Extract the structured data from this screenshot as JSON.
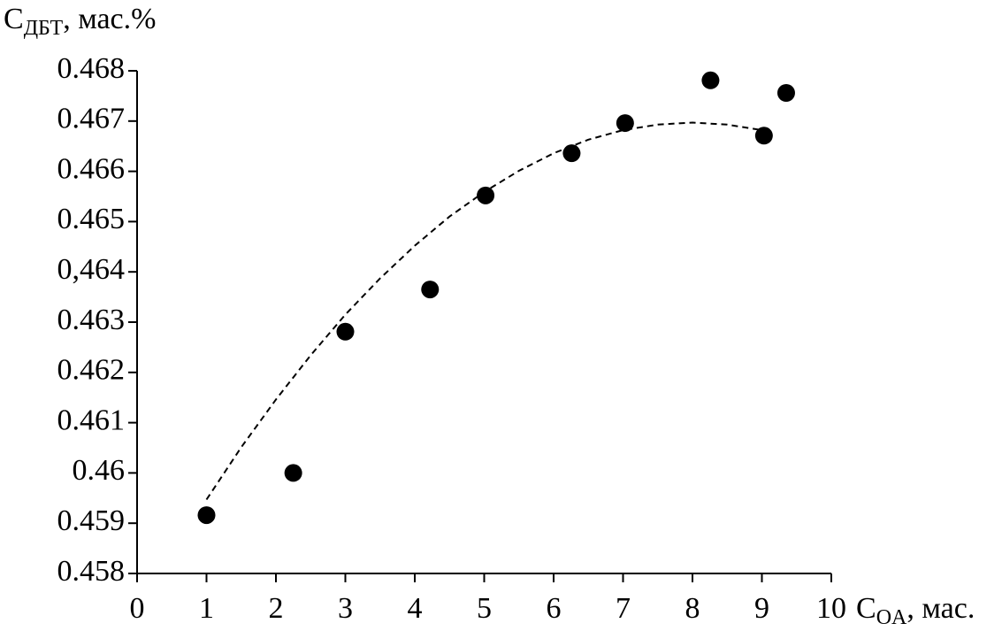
{
  "chart_data": {
    "type": "scatter",
    "y_label": {
      "main": "C",
      "sub": "ДБТ",
      "rest": ", мас.%"
    },
    "x_label": {
      "main": "C",
      "sub": "OA",
      "rest": ", мас."
    },
    "xlim": [
      0,
      10
    ],
    "xticks": [
      0,
      1,
      2,
      3,
      4,
      5,
      6,
      7,
      8,
      9,
      10
    ],
    "ylim": [
      0.458,
      0.468
    ],
    "yticks": [
      0.458,
      0.459,
      0.46,
      0.461,
      0.462,
      0.463,
      {
        "value": 0.464,
        "label": "0,464"
      },
      0.465,
      0.466,
      0.467,
      0.468
    ],
    "grid": false,
    "color": "#000000",
    "x": [
      1.0,
      2.25,
      3.0,
      4.22,
      5.02,
      6.26,
      7.03,
      8.26,
      9.03,
      9.35
    ],
    "values": [
      0.45916,
      0.46,
      0.46281,
      0.46365,
      0.46552,
      0.46636,
      0.46696,
      0.46781,
      0.46671,
      0.46756
    ],
    "trendline": {
      "style": "dashed",
      "x": [
        1,
        1.5,
        2,
        2.5,
        3,
        3.5,
        4,
        4.5,
        5,
        5.5,
        6,
        6.5,
        7,
        7.5,
        8,
        8.5,
        9
      ],
      "y": [
        0.45947,
        0.46051,
        0.46146,
        0.46234,
        0.46315,
        0.46387,
        0.46452,
        0.4651,
        0.46559,
        0.46601,
        0.46636,
        0.46663,
        0.46682,
        0.46693,
        0.46697,
        0.46693,
        0.46682
      ]
    }
  }
}
